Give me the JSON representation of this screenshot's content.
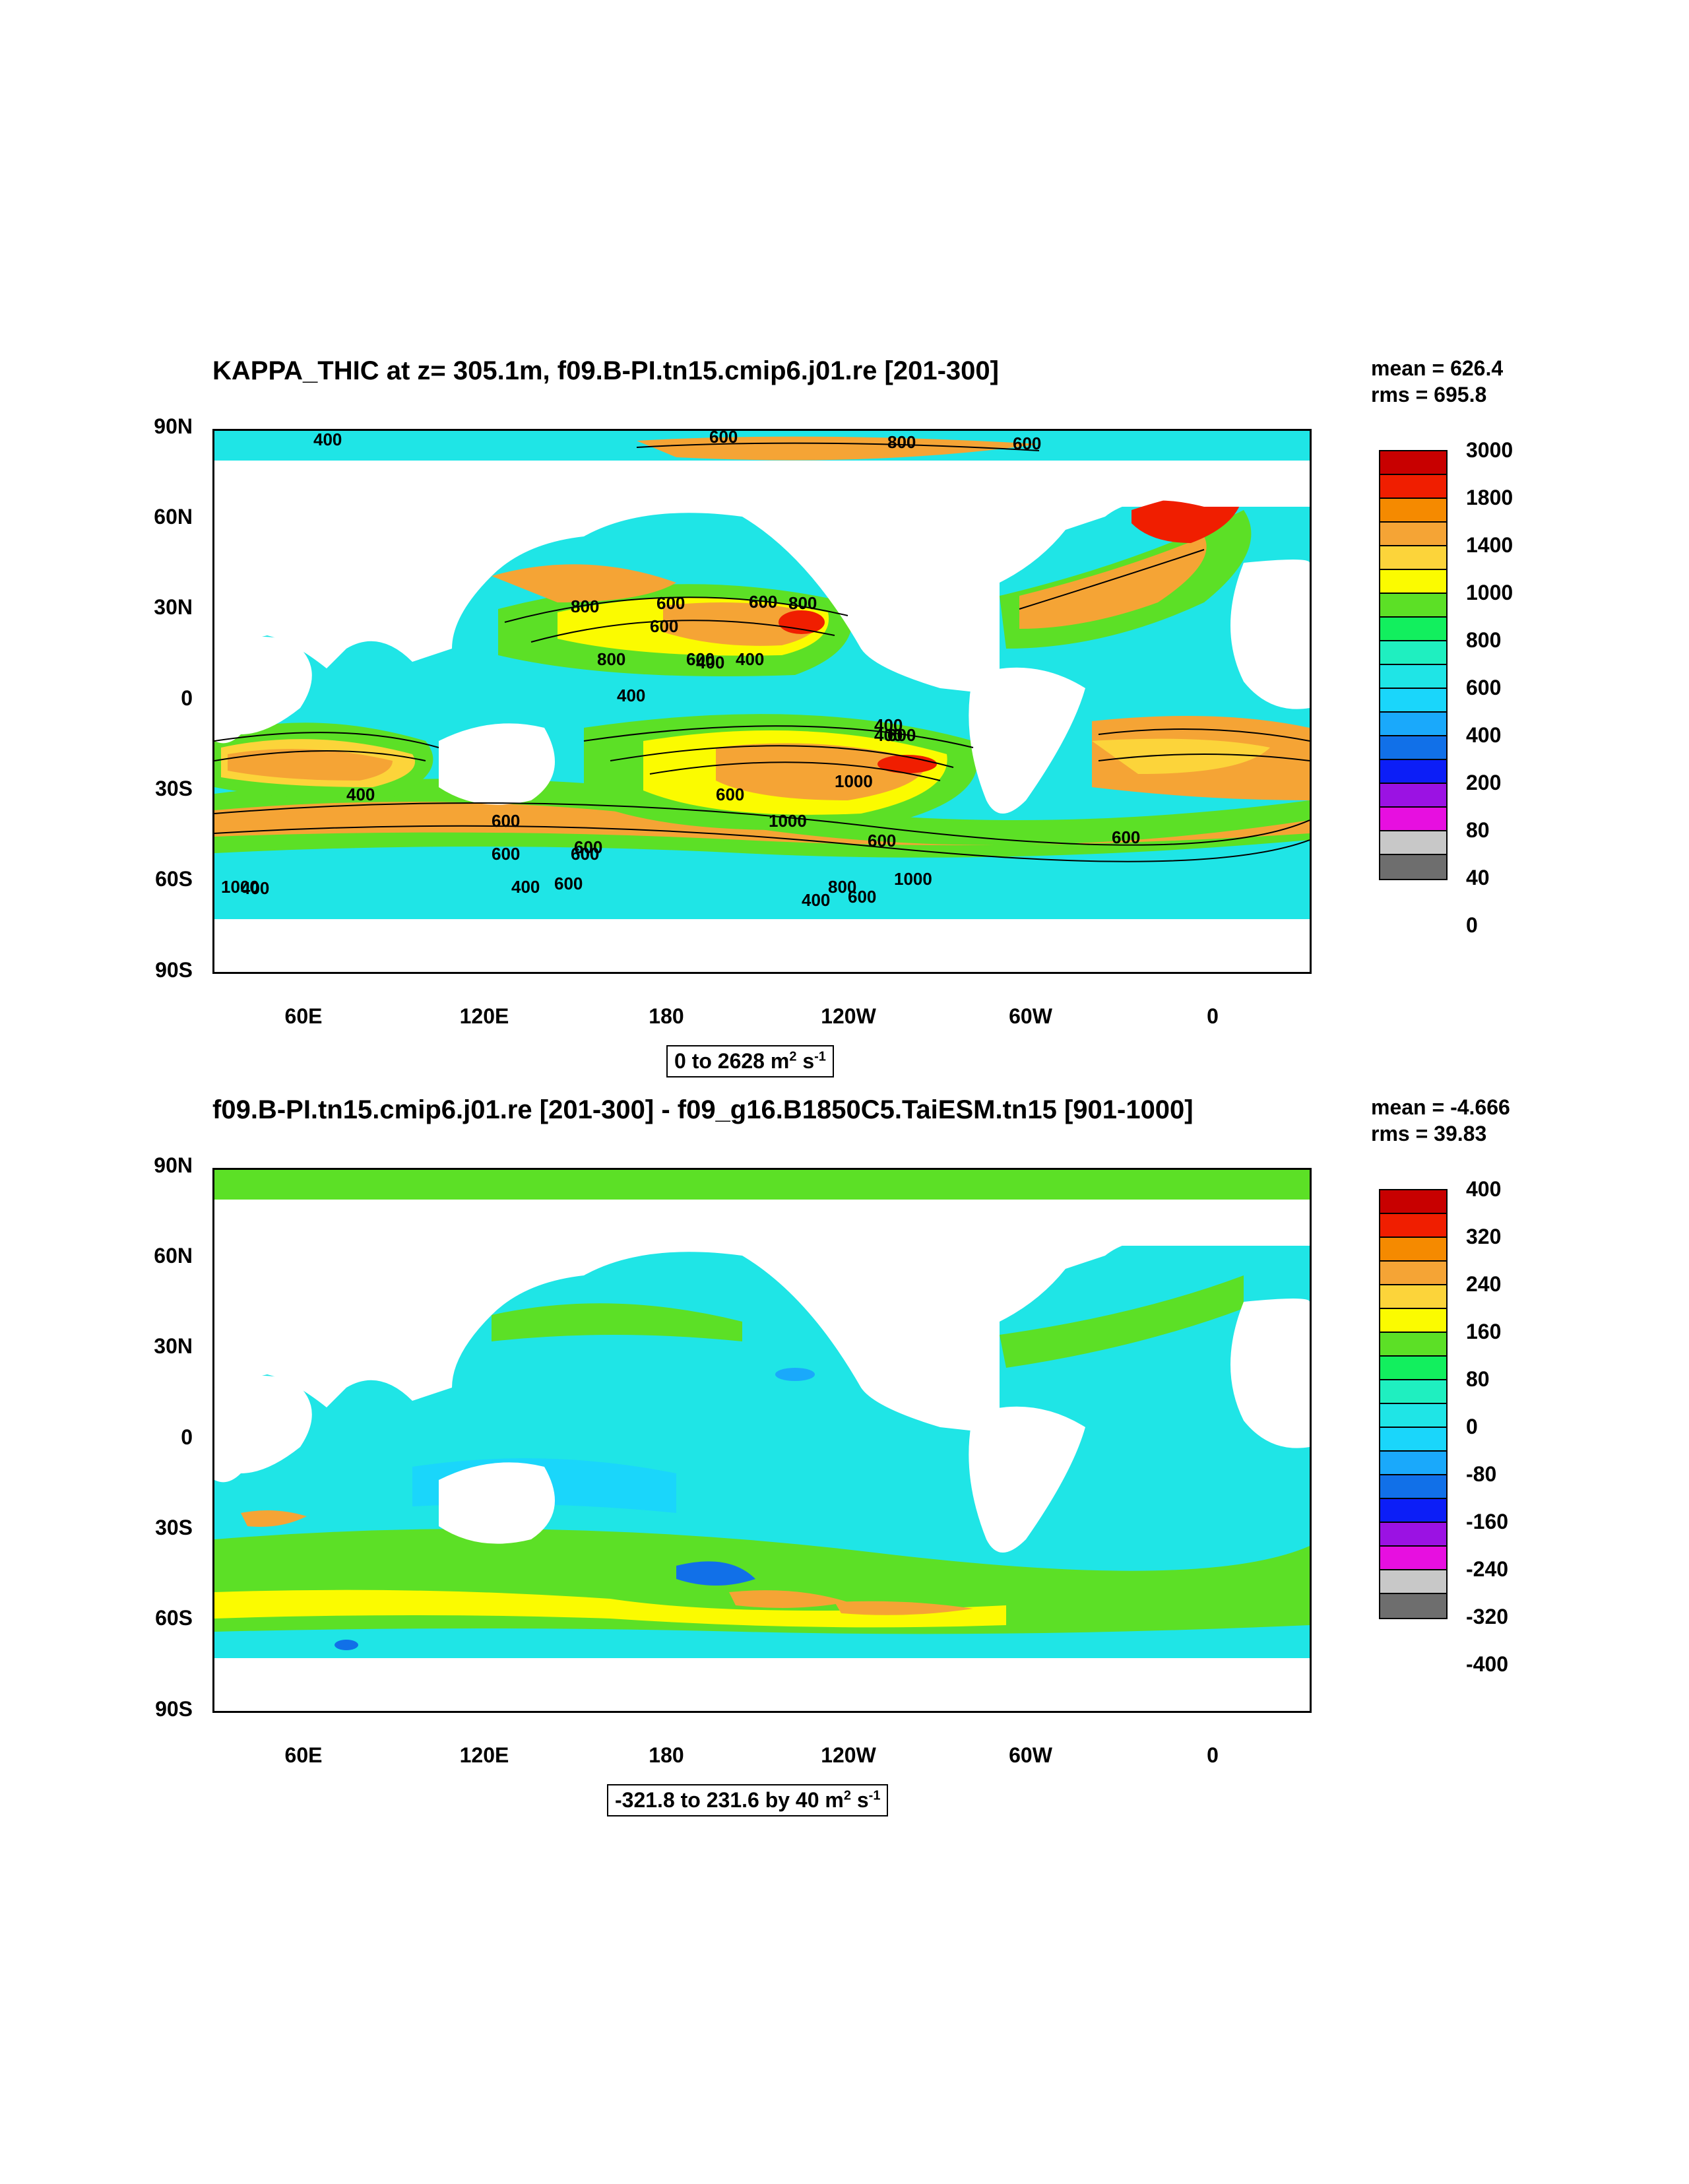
{
  "panels": [
    {
      "id": "top",
      "title": "KAPPA_THIC at z= 305.1m, f09.B-PI.tn15.cmip6.j01.re [201-300]",
      "stats": {
        "mean": "mean = 626.4",
        "rms": "rms = 695.8"
      },
      "range_label": {
        "text": "0 to 2628 m",
        "sup1": "2",
        "mid": " s",
        "sup2": "-1"
      },
      "colorbar": {
        "labels": [
          "3000",
          "1800",
          "1400",
          "1000",
          "800",
          "600",
          "400",
          "200",
          "80",
          "40",
          "0"
        ],
        "colors": [
          "#c80000",
          "#f01e00",
          "#f58a00",
          "#f5a435",
          "#fcd43a",
          "#fbfb00",
          "#5ce026",
          "#12ef5e",
          "#1fefc0",
          "#1fe5e6",
          "#1ad6fb",
          "#1aa9fb",
          "#1170e8",
          "#0c1ef7",
          "#9b12e3",
          "#e70fe0",
          "#c8c8c8",
          "#6e6e6e"
        ],
        "label_step": 2
      },
      "contour_labels": [
        "400",
        "600",
        "800",
        "600",
        "600",
        "800",
        "600",
        "600",
        "400",
        "800",
        "800",
        "600",
        "400",
        "400",
        "400",
        "600",
        "1000",
        "600",
        "1000",
        "600",
        "600",
        "1000",
        "600",
        "400",
        "800",
        "600",
        "600",
        "400",
        "400",
        "600",
        "1000",
        "400",
        "400",
        "600",
        "600"
      ]
    },
    {
      "id": "bottom",
      "title": "f09.B-PI.tn15.cmip6.j01.re [201-300] - f09_g16.B1850C5.TaiESM.tn15 [901-1000]",
      "stats": {
        "mean": "mean = -4.666",
        "rms": "rms = 39.83"
      },
      "range_label": {
        "text": "-321.8 to 231.6 by 40 m",
        "sup1": "2",
        "mid": " s",
        "sup2": "-1"
      },
      "colorbar": {
        "labels": [
          "400",
          "320",
          "240",
          "160",
          "80",
          "0",
          "-80",
          "-160",
          "-240",
          "-320",
          "-400"
        ],
        "colors": [
          "#c80000",
          "#f01e00",
          "#f58a00",
          "#f5a435",
          "#fcd43a",
          "#fbfb00",
          "#5ce026",
          "#12ef5e",
          "#1fefc0",
          "#1fe5e6",
          "#1ad6fb",
          "#1aa9fb",
          "#1170e8",
          "#0c1ef7",
          "#9b12e3",
          "#e70fe0",
          "#c8c8c8",
          "#6e6e6e"
        ],
        "label_step": 2
      }
    }
  ],
  "axes": {
    "y_ticks": [
      "90N",
      "60N",
      "30N",
      "0",
      "30S",
      "60S",
      "90S"
    ],
    "x_ticks": [
      "60E",
      "120E",
      "180",
      "120W",
      "60W",
      "0"
    ]
  }
}
